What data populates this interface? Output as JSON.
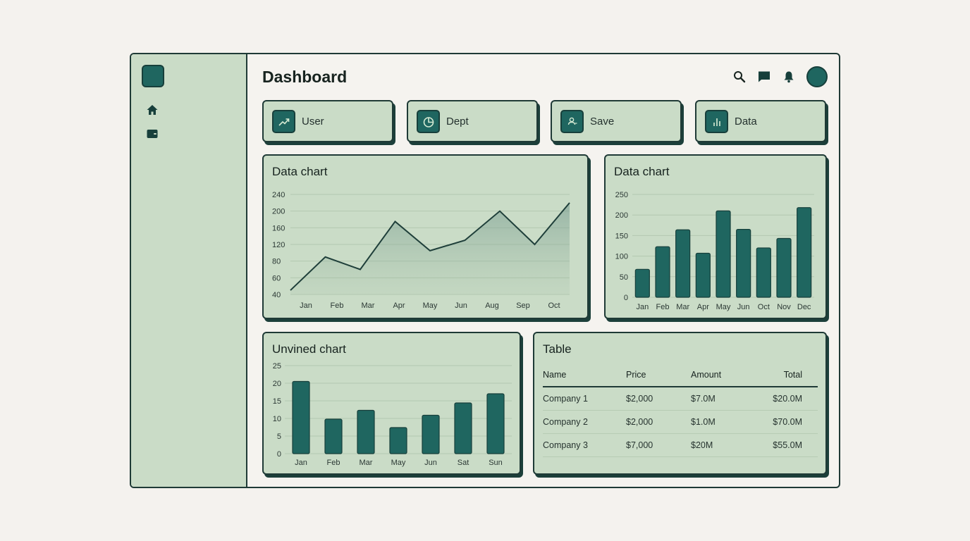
{
  "header": {
    "title": "Dashboard",
    "icons": [
      "search-icon",
      "chat-icon",
      "bell-icon",
      "avatar"
    ]
  },
  "sidebar": {
    "items": [
      {
        "icon": "home-icon"
      },
      {
        "icon": "wallet-icon"
      }
    ]
  },
  "stats": [
    {
      "label": "User",
      "icon": "trending-up-icon"
    },
    {
      "label": "Dept",
      "icon": "pie-chart-icon"
    },
    {
      "label": "Save",
      "icon": "users-icon"
    },
    {
      "label": "Data",
      "icon": "bar-chart-icon"
    }
  ],
  "colors": {
    "accent": "#1f6660",
    "card_bg": "#cadcc7",
    "border": "#1f3a36",
    "page_bg": "#f4f2ee"
  },
  "chart_data": [
    {
      "type": "area",
      "title": "Data chart",
      "categories": [
        "Jan",
        "Feb",
        "Mar",
        "Apr",
        "May",
        "Jun",
        "Aug",
        "Sep",
        "Oct"
      ],
      "y_ticks": [
        "240",
        "200",
        "160",
        "120",
        "80",
        "60",
        "40"
      ],
      "values": [
        45,
        90,
        70,
        175,
        105,
        130,
        200,
        120,
        220
      ],
      "xlabel": "",
      "ylabel": "",
      "grid": true
    },
    {
      "type": "bar",
      "title": "Data chart",
      "categories": [
        "Jan",
        "Feb",
        "Mar",
        "Apr",
        "May",
        "Jun",
        "Oct",
        "Nov",
        "Dec"
      ],
      "y_ticks": [
        "250",
        "200",
        "150",
        "100",
        "50",
        "0"
      ],
      "values": [
        68,
        123,
        164,
        107,
        210,
        165,
        120,
        143,
        218
      ],
      "ylim": [
        0,
        250
      ],
      "grid": true
    },
    {
      "type": "bar",
      "title": "Unvined chart",
      "categories": [
        "Jan",
        "Feb",
        "Mar",
        "May",
        "Jun",
        "Sat",
        "Sun"
      ],
      "y_ticks": [
        "25",
        "20",
        "15",
        "10",
        "5",
        "0"
      ],
      "values": [
        20.5,
        9.8,
        12.3,
        7.4,
        10.9,
        14.4,
        17
      ],
      "ylim": [
        0,
        25
      ],
      "grid": true
    }
  ],
  "table": {
    "title": "Table",
    "columns": [
      "Name",
      "Price",
      "Amount",
      "Total"
    ],
    "rows": [
      [
        "Company 1",
        "$2,000",
        "$7.0M",
        "$20.0M"
      ],
      [
        "Company 2",
        "$2,000",
        "$1.0M",
        "$70.0M"
      ],
      [
        "Company 3",
        "$7,000",
        "$20M",
        "$55.0M"
      ]
    ]
  }
}
